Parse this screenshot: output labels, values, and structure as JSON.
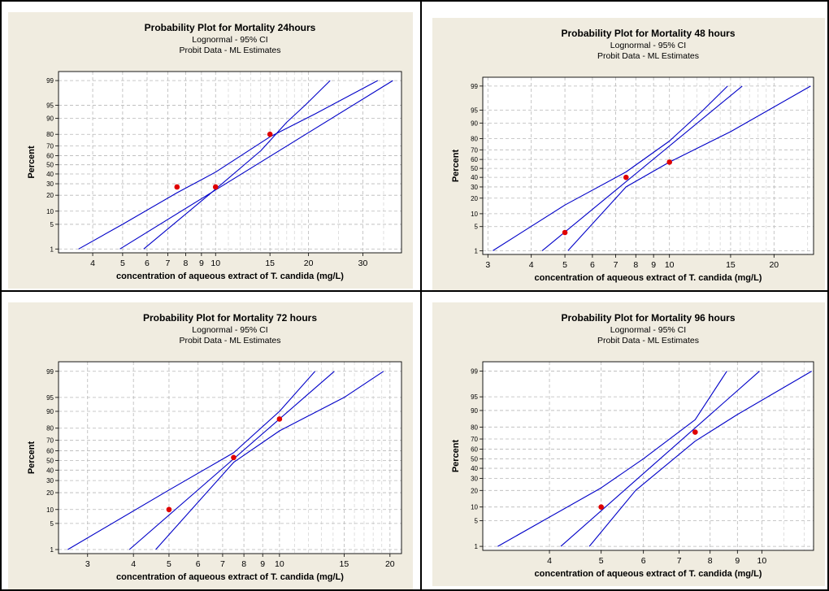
{
  "chart_data": [
    {
      "type": "scatter",
      "title": "Probability Plot for Mortality 24hours",
      "subtitle1": "Lognormal - 95% CI",
      "subtitle2": "Probit Data - ML Estimates",
      "xlabel": "concentration of aqueous extract of T. candida (mg/L)",
      "ylabel": "Percent",
      "x_scale": "log",
      "y_scale": "probability",
      "xlim": [
        3.1,
        40
      ],
      "ylim": [
        1,
        99
      ],
      "x_ticks": [
        4,
        5,
        6,
        7,
        8,
        9,
        10,
        15,
        20,
        30
      ],
      "x_tick_labels": [
        "4",
        "5",
        "6",
        "7",
        "8",
        "9",
        "10",
        "15",
        "20",
        "30"
      ],
      "y_ticks": [
        1,
        5,
        10,
        20,
        30,
        40,
        50,
        60,
        70,
        80,
        90,
        95,
        99
      ],
      "y_tick_labels": [
        "1",
        "5",
        "10",
        "20",
        "30",
        "40",
        "50",
        "60",
        "70",
        "80",
        "90",
        "95",
        "99"
      ],
      "grid": true,
      "points": [
        {
          "x": 7.5,
          "y": 27
        },
        {
          "x": 10,
          "y": 27
        },
        {
          "x": 15,
          "y": 80
        }
      ],
      "fit_line": [
        {
          "x": 4.9,
          "y": 1
        },
        {
          "x": 37.5,
          "y": 99
        }
      ],
      "ci_lower": [
        {
          "x": 5.85,
          "y": 1
        },
        {
          "x": 10,
          "y": 25
        },
        {
          "x": 14,
          "y": 65
        },
        {
          "x": 17,
          "y": 88
        },
        {
          "x": 19.5,
          "y": 95
        },
        {
          "x": 23.5,
          "y": 99
        }
      ],
      "ci_upper": [
        {
          "x": 3.6,
          "y": 1
        },
        {
          "x": 5,
          "y": 5
        },
        {
          "x": 7.5,
          "y": 22
        },
        {
          "x": 10,
          "y": 42
        },
        {
          "x": 15,
          "y": 78
        },
        {
          "x": 21,
          "y": 92
        },
        {
          "x": 33.5,
          "y": 99
        }
      ]
    },
    {
      "type": "scatter",
      "title": "Probability Plot for Mortality 48 hours",
      "subtitle1": "Lognormal - 95% CI",
      "subtitle2": "Probit Data - ML Estimates",
      "xlabel": "concentration of aqueous extract of T. candida (mg/L)",
      "ylabel": "Percent",
      "x_scale": "log",
      "y_scale": "probability",
      "xlim": [
        2.9,
        26
      ],
      "ylim": [
        1,
        99
      ],
      "x_ticks": [
        3,
        4,
        5,
        6,
        7,
        8,
        9,
        10,
        15,
        20
      ],
      "x_tick_labels": [
        "3",
        "4",
        "5",
        "6",
        "7",
        "8",
        "9",
        "10",
        "15",
        "20"
      ],
      "y_ticks": [
        1,
        5,
        10,
        20,
        30,
        40,
        50,
        60,
        70,
        80,
        90,
        95,
        99
      ],
      "y_tick_labels": [
        "1",
        "5",
        "10",
        "20",
        "30",
        "40",
        "50",
        "60",
        "70",
        "80",
        "90",
        "95",
        "99"
      ],
      "grid": true,
      "points": [
        {
          "x": 5,
          "y": 3.5
        },
        {
          "x": 7.5,
          "y": 40
        },
        {
          "x": 10,
          "y": 57
        }
      ],
      "fit_line": [
        {
          "x": 4.3,
          "y": 1
        },
        {
          "x": 16.2,
          "y": 99
        }
      ],
      "ci_lower": [
        {
          "x": 5.1,
          "y": 1
        },
        {
          "x": 7.5,
          "y": 30
        },
        {
          "x": 10,
          "y": 57
        },
        {
          "x": 15,
          "y": 85
        },
        {
          "x": 25.5,
          "y": 99
        }
      ],
      "ci_upper": [
        {
          "x": 3.1,
          "y": 1
        },
        {
          "x": 5,
          "y": 15
        },
        {
          "x": 7.5,
          "y": 46
        },
        {
          "x": 10,
          "y": 78
        },
        {
          "x": 12.5,
          "y": 95
        },
        {
          "x": 14.7,
          "y": 99
        }
      ]
    },
    {
      "type": "scatter",
      "title": "Probability Plot for Mortality 72 hours",
      "subtitle1": "Lognormal - 95% CI",
      "subtitle2": "Probit Data - ML Estimates",
      "xlabel": "concentration of aqueous extract of T. candida (mg/L)",
      "ylabel": "Percent",
      "x_scale": "log",
      "y_scale": "probability",
      "xlim": [
        2.5,
        21.5
      ],
      "ylim": [
        1,
        99
      ],
      "x_ticks": [
        3,
        4,
        5,
        6,
        7,
        8,
        9,
        10,
        15,
        20
      ],
      "x_tick_labels": [
        "3",
        "4",
        "5",
        "6",
        "7",
        "8",
        "9",
        "10",
        "15",
        "20"
      ],
      "y_ticks": [
        1,
        5,
        10,
        20,
        30,
        40,
        50,
        60,
        70,
        80,
        90,
        95,
        99
      ],
      "y_tick_labels": [
        "1",
        "5",
        "10",
        "20",
        "30",
        "40",
        "50",
        "60",
        "70",
        "80",
        "90",
        "95",
        "99"
      ],
      "grid": true,
      "points": [
        {
          "x": 5,
          "y": 10
        },
        {
          "x": 7.5,
          "y": 53
        },
        {
          "x": 10,
          "y": 86
        }
      ],
      "fit_line": [
        {
          "x": 3.9,
          "y": 1
        },
        {
          "x": 14.1,
          "y": 99
        }
      ],
      "ci_lower": [
        {
          "x": 4.6,
          "y": 1
        },
        {
          "x": 7.5,
          "y": 48
        },
        {
          "x": 10,
          "y": 78
        },
        {
          "x": 15,
          "y": 95
        },
        {
          "x": 19.2,
          "y": 99
        }
      ],
      "ci_upper": [
        {
          "x": 2.65,
          "y": 1
        },
        {
          "x": 5,
          "y": 22
        },
        {
          "x": 7.5,
          "y": 58
        },
        {
          "x": 10,
          "y": 90
        },
        {
          "x": 12.5,
          "y": 99
        }
      ]
    },
    {
      "type": "scatter",
      "title": "Probability Plot for Mortality 96 hours",
      "subtitle1": "Lognormal - 95% CI",
      "subtitle2": "Probit Data - ML Estimates",
      "xlabel": "concentration of aqueous extract of T. candida (mg/L)",
      "ylabel": "Percent",
      "x_scale": "log",
      "y_scale": "probability",
      "xlim": [
        3,
        12.5
      ],
      "ylim": [
        1,
        99
      ],
      "x_ticks": [
        4,
        5,
        6,
        7,
        8,
        9,
        10
      ],
      "x_tick_labels": [
        "4",
        "5",
        "6",
        "7",
        "8",
        "9",
        "10"
      ],
      "y_ticks": [
        1,
        5,
        10,
        20,
        30,
        40,
        50,
        60,
        70,
        80,
        90,
        95,
        99
      ],
      "y_tick_labels": [
        "1",
        "5",
        "10",
        "20",
        "30",
        "40",
        "50",
        "60",
        "70",
        "80",
        "90",
        "95",
        "99"
      ],
      "grid": true,
      "points": [
        {
          "x": 5,
          "y": 10
        },
        {
          "x": 7.5,
          "y": 76
        }
      ],
      "fit_line": [
        {
          "x": 4.2,
          "y": 1
        },
        {
          "x": 9.9,
          "y": 99
        }
      ],
      "ci_lower": [
        {
          "x": 4.75,
          "y": 1
        },
        {
          "x": 5.8,
          "y": 20
        },
        {
          "x": 7.5,
          "y": 68
        },
        {
          "x": 9,
          "y": 88
        },
        {
          "x": 12.4,
          "y": 99
        }
      ],
      "ci_upper": [
        {
          "x": 3.2,
          "y": 1
        },
        {
          "x": 5,
          "y": 22
        },
        {
          "x": 6,
          "y": 50
        },
        {
          "x": 7.5,
          "y": 85
        },
        {
          "x": 8.6,
          "y": 99
        }
      ]
    }
  ]
}
